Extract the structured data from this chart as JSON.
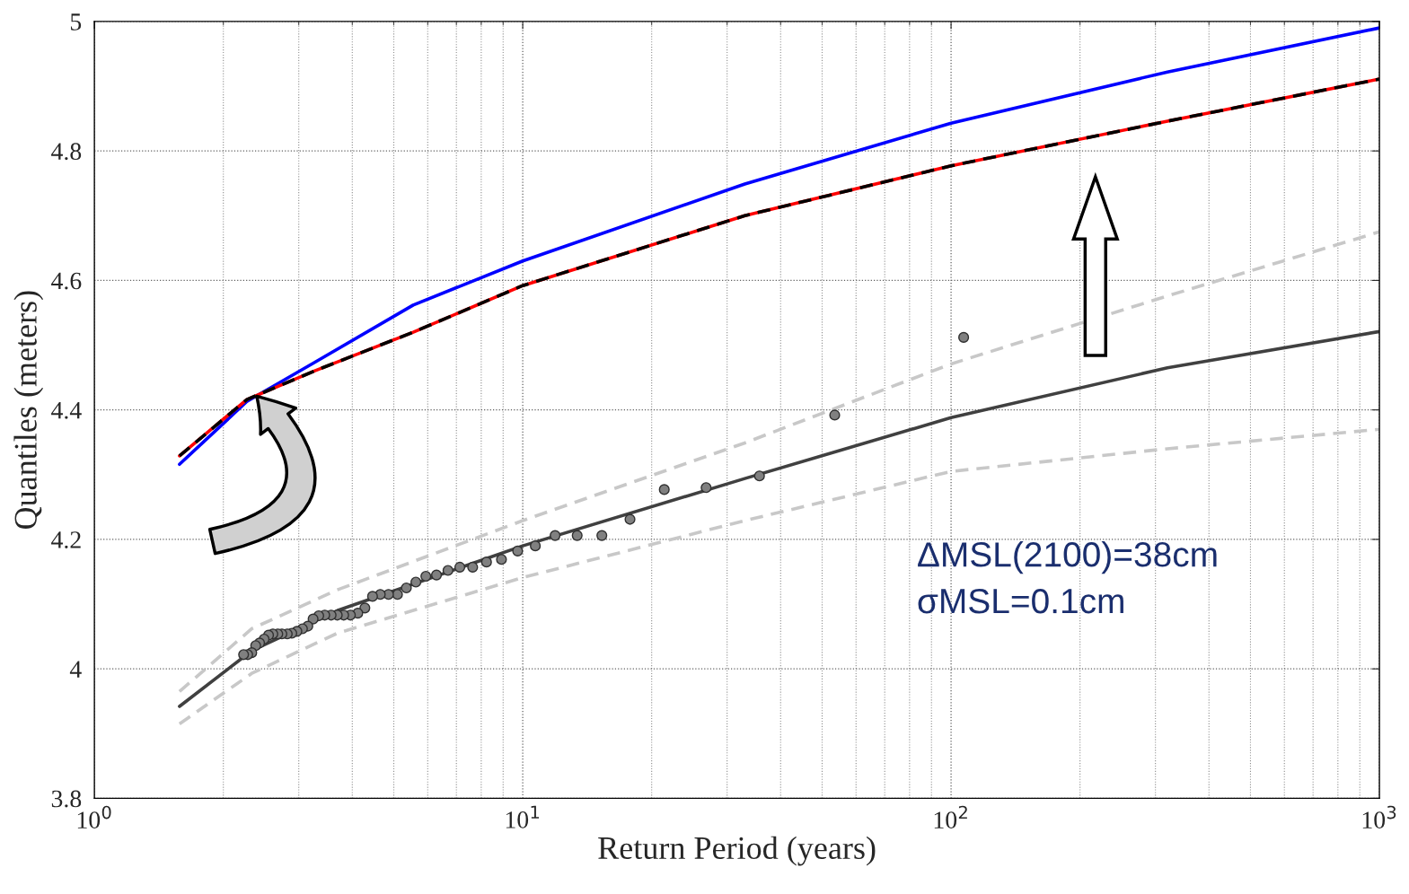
{
  "chart_data": {
    "type": "line",
    "xlabel": "Return Period (years)",
    "ylabel": "Quantiles (meters)",
    "log": "x",
    "grid": true,
    "legend": false,
    "xlim": [
      1,
      1000
    ],
    "xticks": [
      {
        "value": 1,
        "label": "10$^{0}$"
      },
      {
        "value": 10,
        "label": "10$^{1}$"
      },
      {
        "value": 100,
        "label": "10$^{2}$"
      },
      {
        "value": 1000,
        "label": "10$^{3}$"
      }
    ],
    "ylim": [
      3.8,
      5
    ],
    "yticks": [
      3.8,
      4,
      4.2,
      4.4,
      4.6,
      4.8,
      5
    ],
    "annotations": [
      "ΔMSL(2100)=38cm",
      "σMSL=0.1cm"
    ],
    "series": [
      {
        "color": "#0000ff",
        "line_style": "solid",
        "x": [
          1.58,
          2.27,
          3.26,
          5.55,
          10,
          33,
          100,
          320,
          1000
        ],
        "values": [
          4.316,
          4.413,
          4.473,
          4.562,
          4.63,
          4.749,
          4.843,
          4.922,
          4.99
        ]
      },
      {
        "color": "#ff0000",
        "line_style": "solid",
        "x": [
          1.58,
          2.27,
          3.26,
          5.55,
          10,
          33,
          100,
          320,
          1000
        ],
        "values": [
          4.329,
          4.416,
          4.46,
          4.52,
          4.592,
          4.7,
          4.777,
          4.846,
          4.911
        ]
      },
      {
        "color": "#000000",
        "line_style": "dashed",
        "x": [
          1.58,
          2.27,
          3.26,
          5.55,
          10,
          33,
          100,
          320,
          1000
        ],
        "values": [
          4.329,
          4.416,
          4.46,
          4.52,
          4.592,
          4.7,
          4.777,
          4.846,
          4.911
        ]
      },
      {
        "color": "#404040",
        "line_style": "solid",
        "x": [
          1.58,
          2.33,
          3.69,
          10,
          33,
          100,
          320,
          1000
        ],
        "values": [
          3.942,
          4.028,
          4.09,
          4.19,
          4.294,
          4.388,
          4.465,
          4.521
        ]
      },
      {
        "color": "#c8c8c8",
        "line_style": "dashed",
        "x": [
          1.58,
          2.33,
          3.69,
          10,
          33,
          100,
          320,
          1000
        ],
        "values": [
          3.965,
          4.062,
          4.122,
          4.229,
          4.349,
          4.471,
          4.576,
          4.675
        ]
      },
      {
        "color": "#c8c8c8",
        "line_style": "dashed",
        "x": [
          1.58,
          2.33,
          3.69,
          10,
          33,
          100,
          320,
          1000
        ],
        "values": [
          3.915,
          3.993,
          4.055,
          4.141,
          4.229,
          4.305,
          4.34,
          4.37
        ]
      },
      {
        "type": "scatter",
        "color": "#808080",
        "marker": "circle",
        "x": [
          107,
          53.5,
          35.7,
          26.8,
          21.4,
          17.8,
          15.3,
          13.4,
          11.9,
          10.7,
          9.73,
          8.92,
          8.23,
          7.64,
          7.13,
          6.69,
          6.29,
          5.94,
          5.63,
          5.35,
          5.1,
          4.86,
          4.65,
          4.46,
          4.28,
          4.12,
          3.96,
          3.82,
          3.69,
          3.57,
          3.45,
          3.34,
          3.24,
          3.15,
          3.06,
          2.97,
          2.89,
          2.82,
          2.74,
          2.68,
          2.61,
          2.55,
          2.49,
          2.43,
          2.38,
          2.33,
          2.28,
          2.23
        ],
        "values": [
          4.512,
          4.392,
          4.298,
          4.28,
          4.277,
          4.231,
          4.206,
          4.206,
          4.206,
          4.19,
          4.182,
          4.169,
          4.165,
          4.157,
          4.157,
          4.152,
          4.145,
          4.143,
          4.134,
          4.125,
          4.115,
          4.115,
          4.115,
          4.112,
          4.094,
          4.086,
          4.083,
          4.083,
          4.083,
          4.083,
          4.083,
          4.082,
          4.077,
          4.066,
          4.062,
          4.058,
          4.055,
          4.054,
          4.054,
          4.054,
          4.054,
          4.052,
          4.046,
          4.04,
          4.036,
          4.025,
          4.022,
          4.022
        ]
      }
    ]
  }
}
